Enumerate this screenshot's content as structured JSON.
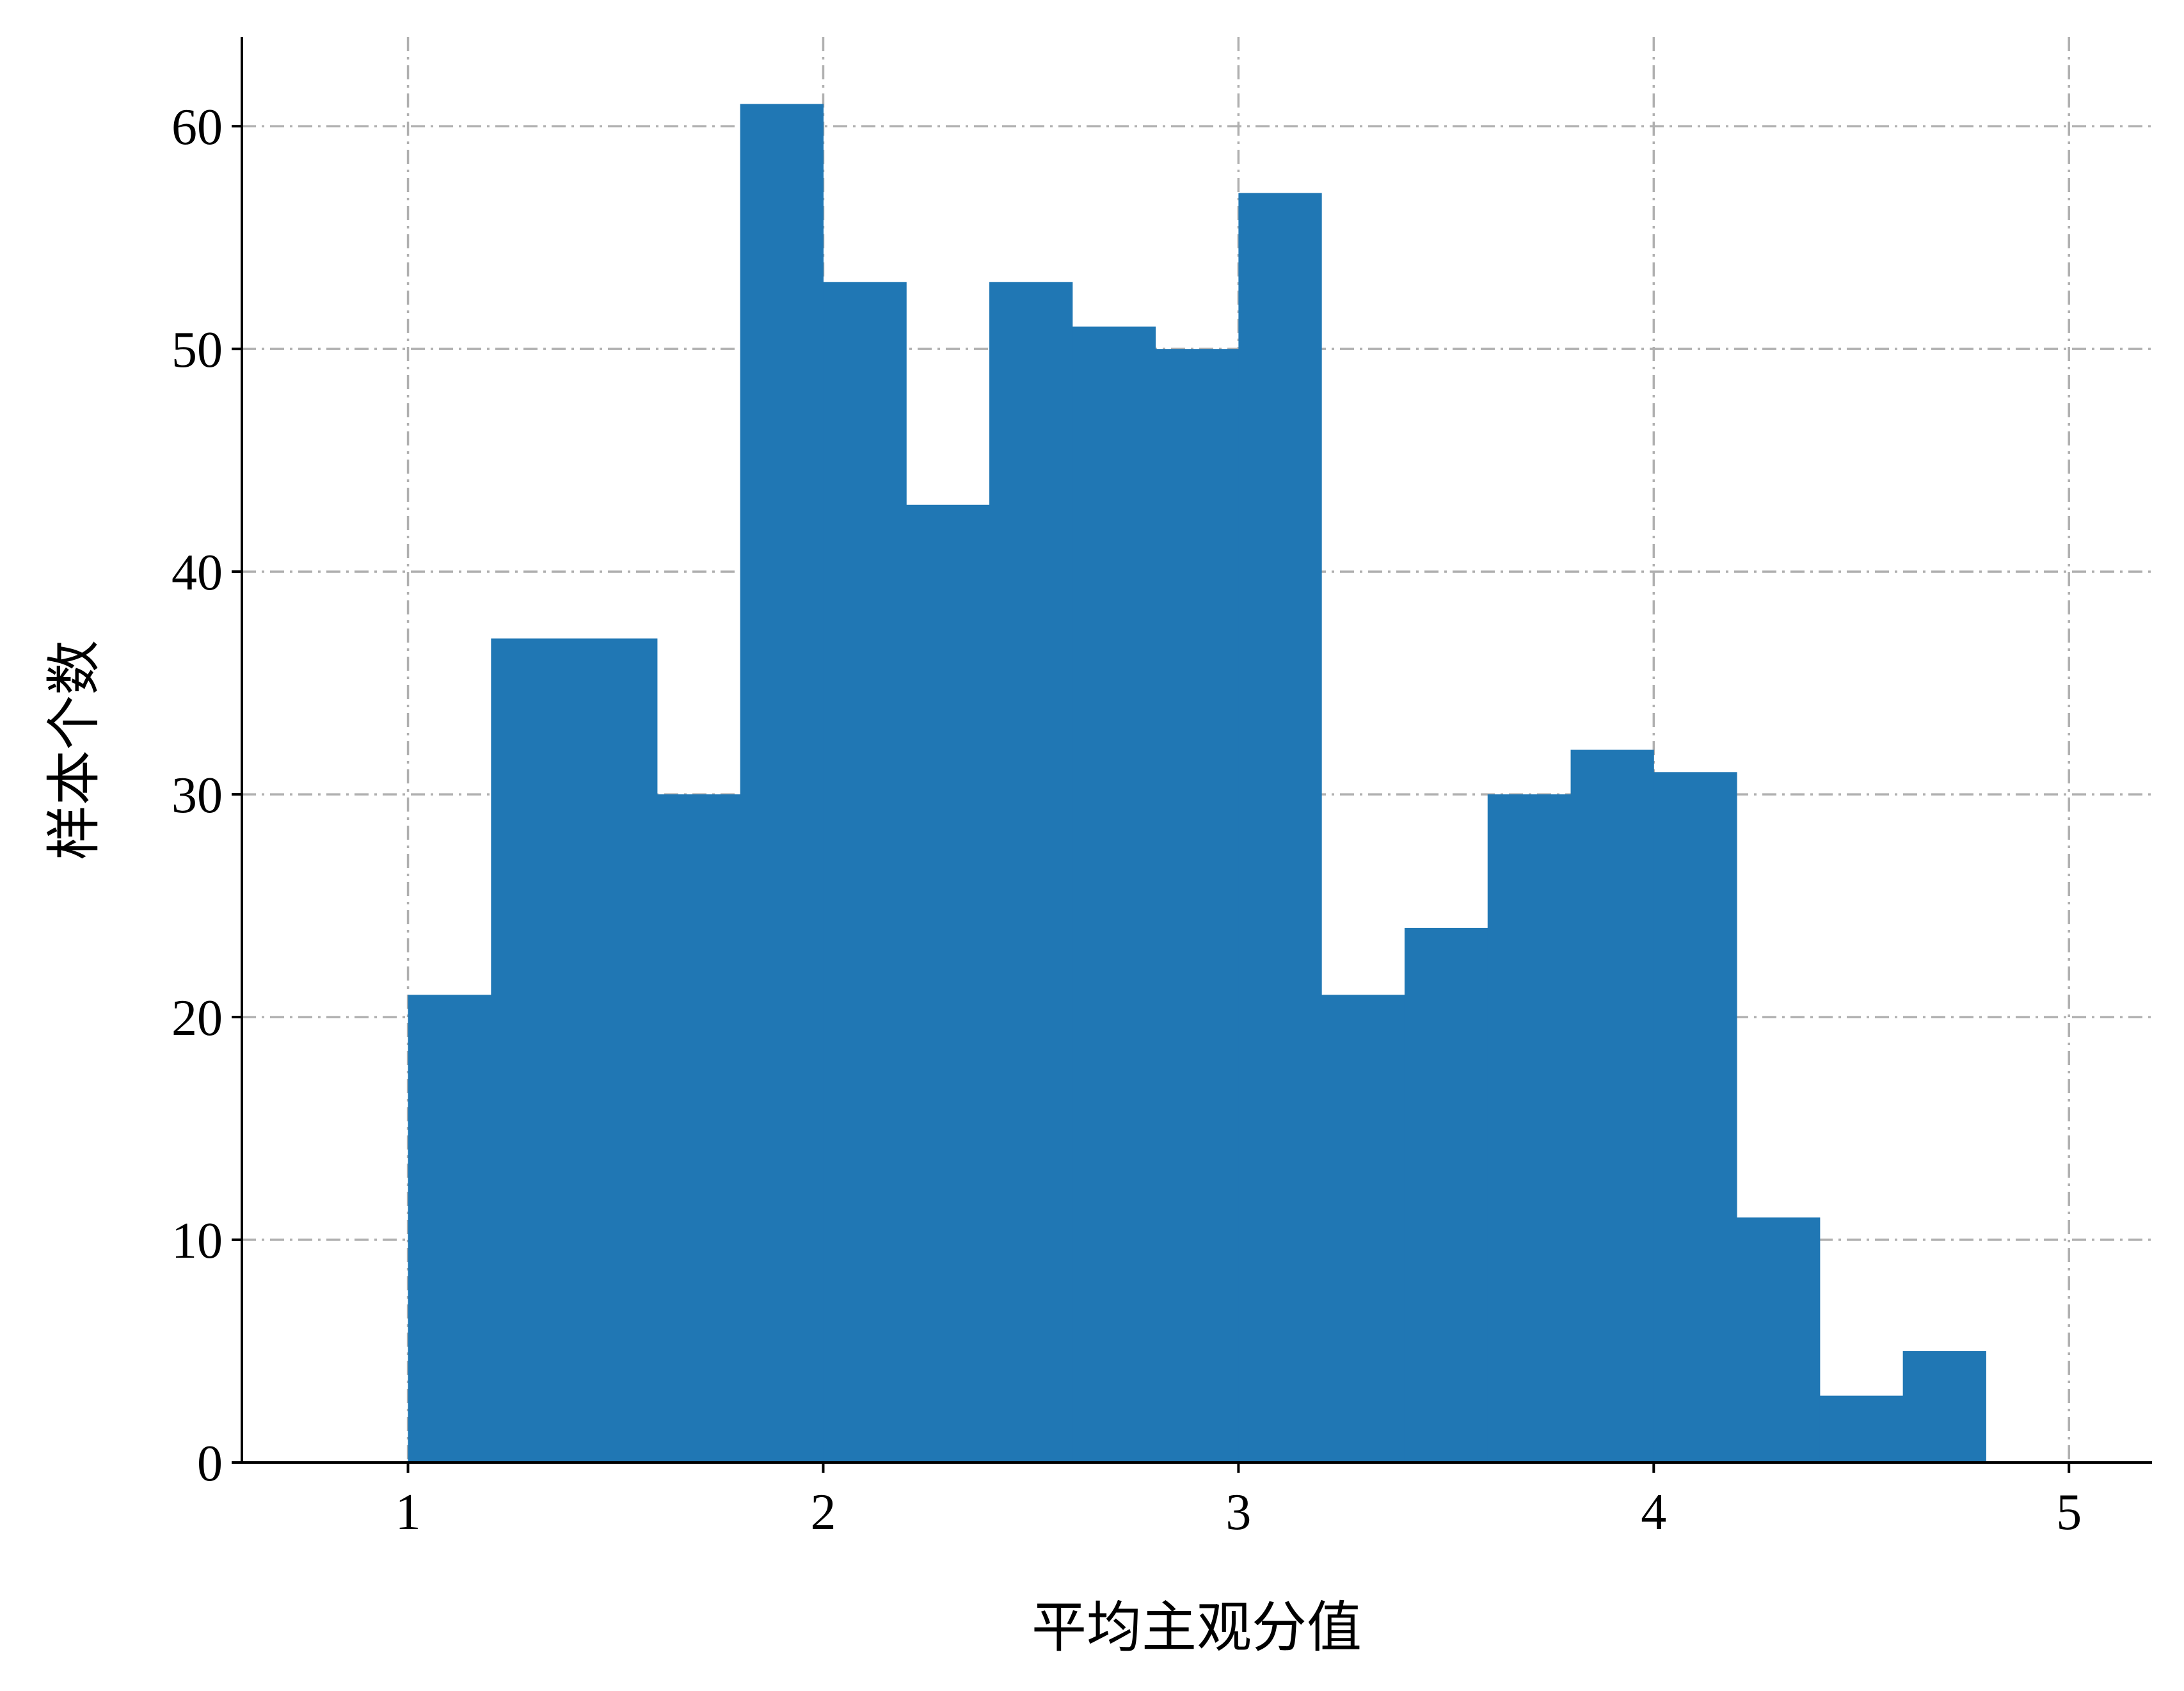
{
  "chart_data": {
    "type": "bar",
    "subtype": "histogram",
    "title": "",
    "xlabel": "平均主观分值",
    "ylabel": "样本个数",
    "bin_edges": [
      1.0,
      1.2,
      1.4,
      1.6,
      1.8,
      2.0,
      2.2,
      2.4,
      2.6,
      2.8,
      3.0,
      3.2,
      3.4,
      3.6,
      3.8,
      4.0,
      4.2,
      4.4,
      4.6,
      4.8
    ],
    "values": [
      21,
      37,
      37,
      30,
      61,
      53,
      43,
      53,
      51,
      50,
      57,
      21,
      24,
      30,
      32,
      31,
      11,
      3,
      5
    ],
    "xlim": [
      0.6,
      5.2
    ],
    "ylim": [
      0,
      64
    ],
    "xticks": [
      "1",
      "2",
      "3",
      "4",
      "5"
    ],
    "yticks": [
      "0",
      "10",
      "20",
      "30",
      "40",
      "50",
      "60"
    ],
    "grid": true,
    "bar_color": "#2077b4",
    "grid_color": "#b0b0b0"
  }
}
